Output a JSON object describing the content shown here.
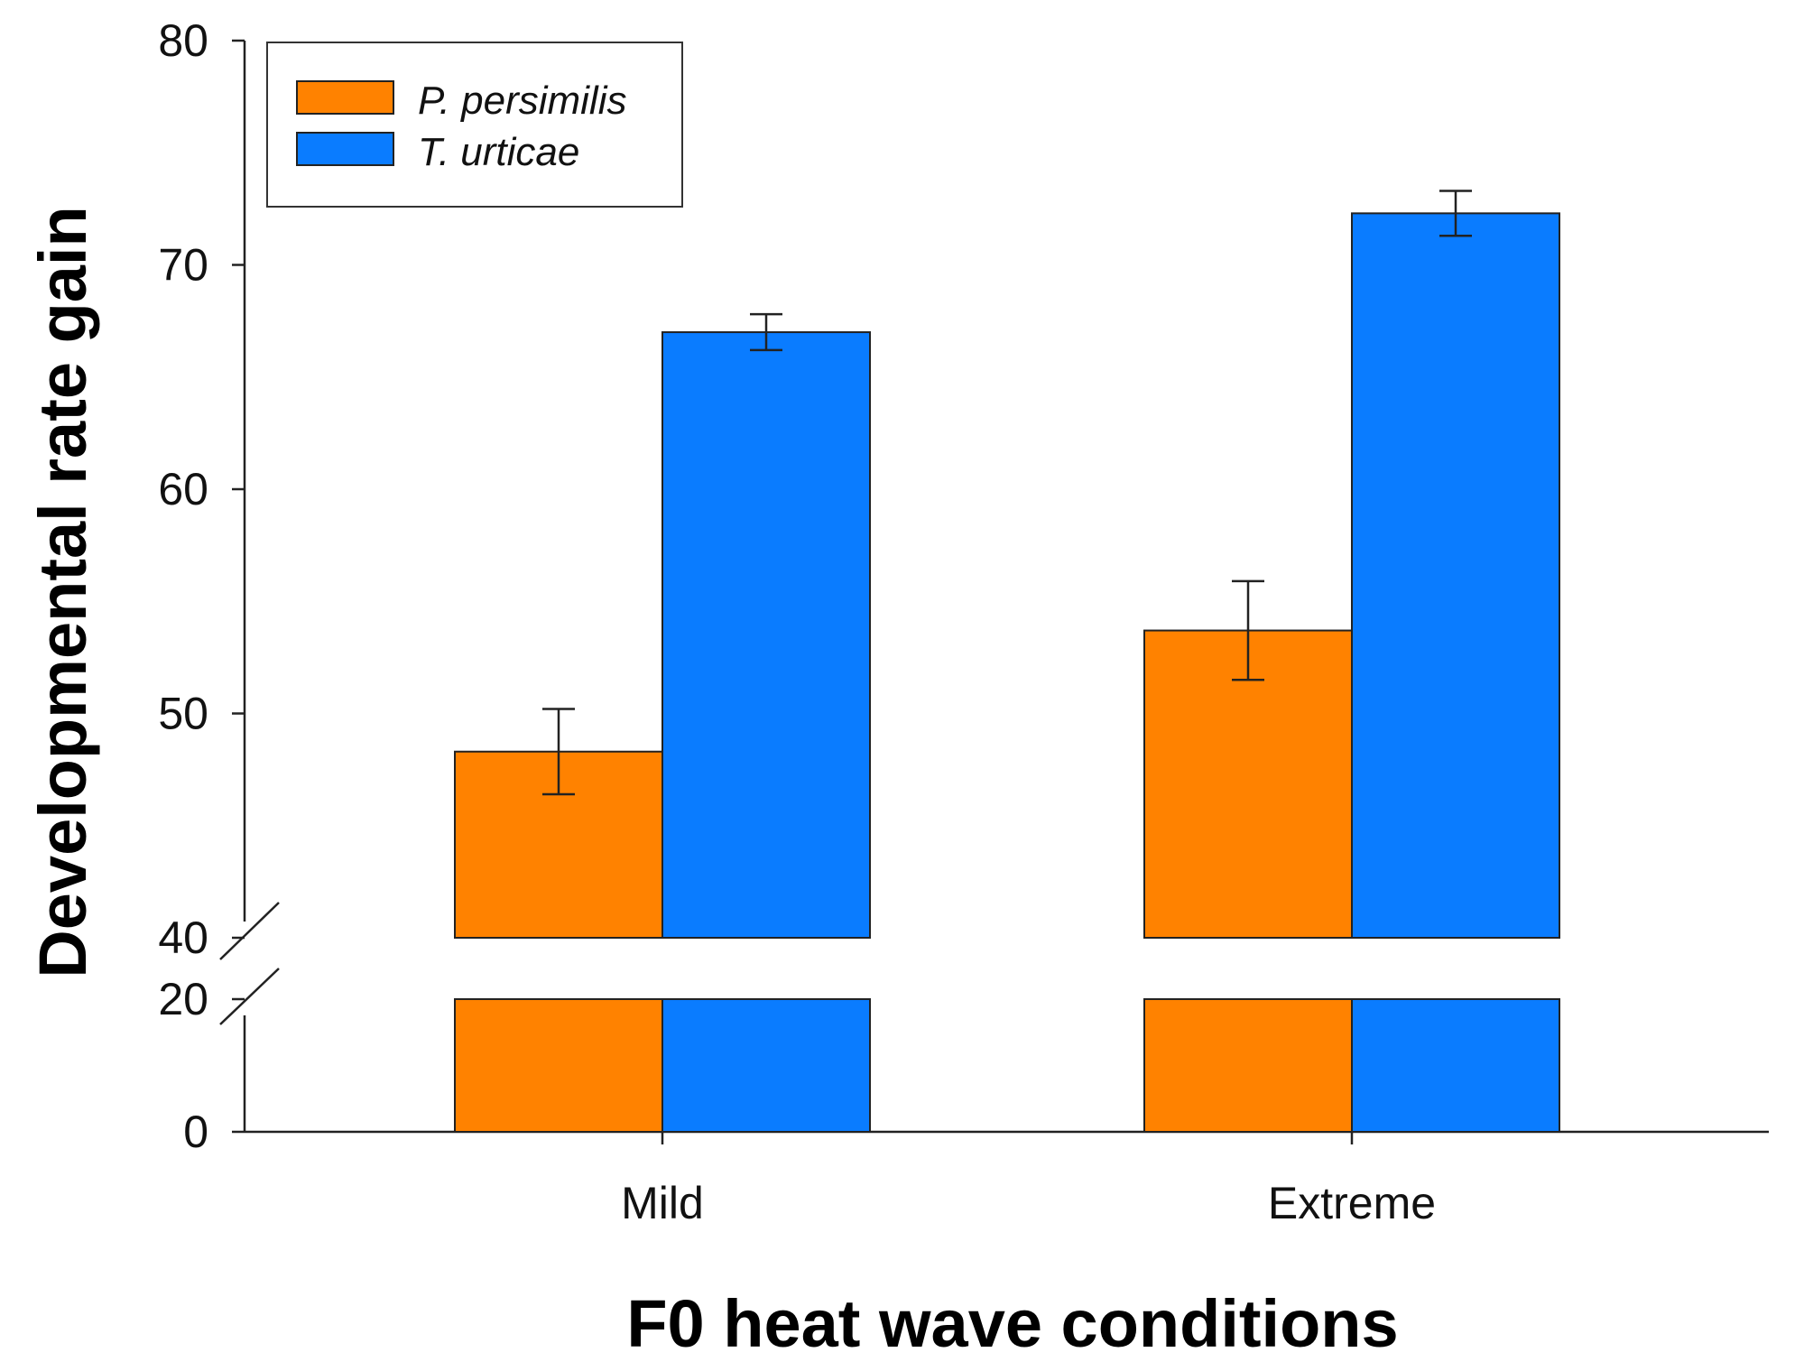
{
  "chart_data": {
    "type": "bar",
    "title": "",
    "xlabel": "F0 heat wave conditions",
    "ylabel": "Developmental rate gain",
    "categories": [
      "Mild",
      "Extreme"
    ],
    "series": [
      {
        "name": "P. persimilis",
        "color": "#FF8200",
        "values": [
          48.3,
          53.7
        ],
        "errors": [
          1.9,
          2.2
        ]
      },
      {
        "name": "T. urticae",
        "color": "#0A7CFF",
        "values": [
          67.0,
          72.3
        ],
        "errors": [
          0.8,
          1.0
        ]
      }
    ],
    "y_axis": {
      "broken": true,
      "lower_segment": {
        "range": [
          0,
          20
        ],
        "ticks": [
          0,
          20
        ]
      },
      "upper_segment": {
        "range": [
          40,
          80
        ],
        "ticks": [
          40,
          50,
          60,
          70,
          80
        ]
      }
    },
    "legend": {
      "position": "top-left"
    },
    "grid": false
  }
}
